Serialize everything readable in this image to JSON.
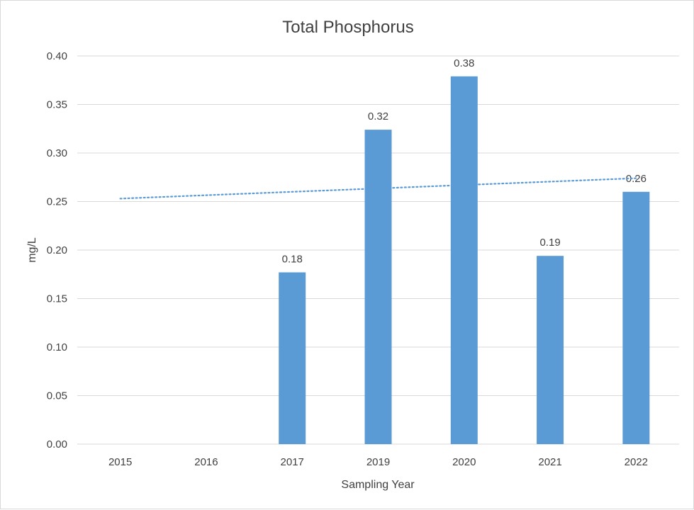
{
  "chart_data": {
    "type": "bar",
    "title": "Total Phosphorus",
    "xlabel": "Sampling Year",
    "ylabel": "mg/L",
    "categories": [
      "2015",
      "2016",
      "2017",
      "2019",
      "2020",
      "2021",
      "2022"
    ],
    "series": [
      {
        "values": [
          null,
          null,
          0.177,
          0.324,
          0.379,
          0.194,
          0.26
        ],
        "data_labels": [
          "",
          "",
          "0.18",
          "0.32",
          "0.38",
          "0.19",
          "0.26"
        ],
        "color": "#5b9bd5"
      }
    ],
    "trendline": {
      "type": "linear",
      "style": "dotted",
      "color": "#5b9bd5",
      "start_value": 0.253,
      "end_value": 0.274
    },
    "ylim": [
      0,
      0.4
    ],
    "yticks": [
      "0.00",
      "0.05",
      "0.10",
      "0.15",
      "0.20",
      "0.25",
      "0.30",
      "0.35",
      "0.40"
    ],
    "grid": true,
    "legend": "none"
  }
}
